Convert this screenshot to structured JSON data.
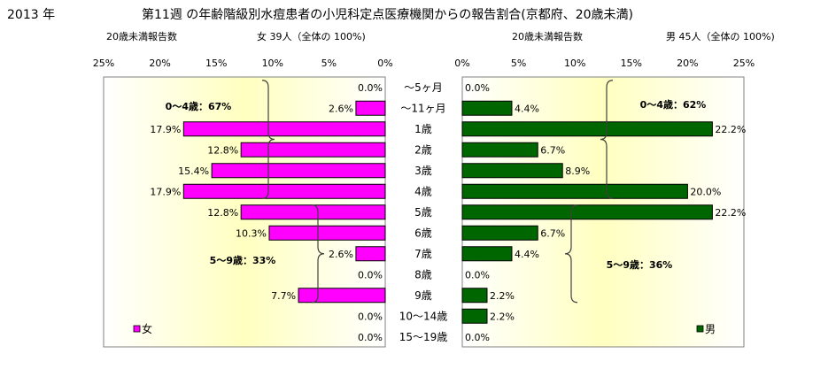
{
  "header": {
    "year": "2013 年",
    "title": "第11週 の年齢階級別水痘患者の小児科定点医療機関からの報告割合(京都府、20歳未満)"
  },
  "colors": {
    "female": "#ff00ff",
    "male": "#006600",
    "plot_bg_edge": "#ffffff",
    "plot_bg_center": "#ffffc0",
    "border": "#808080",
    "bracket": "#404040"
  },
  "age_labels": [
    "～5ヶ月",
    "～11ヶ月",
    "1歳",
    "2歳",
    "3歳",
    "4歳",
    "5歳",
    "6歳",
    "7歳",
    "8歳",
    "9歳",
    "10～14歳",
    "15～19歳"
  ],
  "chart_data": [
    {
      "type": "bar",
      "orientation": "horizontal",
      "side": "left",
      "subtitle_left": "20歳未満報告数",
      "subtitle_right": "女  39人（全体の  100%)",
      "categories": [
        "～5ヶ月",
        "～11ヶ月",
        "1歳",
        "2歳",
        "3歳",
        "4歳",
        "5歳",
        "6歳",
        "7歳",
        "8歳",
        "9歳",
        "10～14歳",
        "15～19歳"
      ],
      "series": [
        {
          "name": "女",
          "values": [
            0.0,
            2.6,
            17.9,
            12.8,
            15.4,
            17.9,
            12.8,
            10.3,
            2.6,
            0.0,
            7.7,
            0.0,
            0.0
          ]
        }
      ],
      "data_labels": [
        "0.0%",
        "2.6%",
        "17.9%",
        "12.8%",
        "15.4%",
        "17.9%",
        "12.8%",
        "10.3%",
        "2.6%",
        "0.0%",
        "7.7%",
        "0.0%",
        "0.0%"
      ],
      "xlim": [
        0,
        25
      ],
      "x_reversed": true,
      "ticks": [
        "25%",
        "20%",
        "15%",
        "10%",
        "5%",
        "0%"
      ],
      "annotations": [
        {
          "text": "0～4歳：67%",
          "from": 0,
          "to": 5
        },
        {
          "text": "5～9歳：33%",
          "from": 6,
          "to": 10
        }
      ]
    },
    {
      "type": "bar",
      "orientation": "horizontal",
      "side": "right",
      "subtitle_left": "20歳未満報告数",
      "subtitle_right": "男  45人（全体の  100%)",
      "categories": [
        "～5ヶ月",
        "～11ヶ月",
        "1歳",
        "2歳",
        "3歳",
        "4歳",
        "5歳",
        "6歳",
        "7歳",
        "8歳",
        "9歳",
        "10～14歳",
        "15～19歳"
      ],
      "series": [
        {
          "name": "男",
          "values": [
            0.0,
            4.4,
            22.2,
            6.7,
            8.9,
            20.0,
            22.2,
            6.7,
            4.4,
            0.0,
            2.2,
            2.2,
            0.0
          ]
        }
      ],
      "data_labels": [
        "0.0%",
        "4.4%",
        "22.2%",
        "6.7%",
        "8.9%",
        "20.0%",
        "22.2%",
        "6.7%",
        "4.4%",
        "0.0%",
        "2.2%",
        "2.2%",
        "0.0%"
      ],
      "xlim": [
        0,
        25
      ],
      "x_reversed": false,
      "ticks": [
        "0%",
        "5%",
        "10%",
        "15%",
        "20%",
        "25%"
      ],
      "annotations": [
        {
          "text": "0～4歳：62%",
          "from": 0,
          "to": 5
        },
        {
          "text": "5～9歳：36%",
          "from": 6,
          "to": 10
        }
      ]
    }
  ]
}
